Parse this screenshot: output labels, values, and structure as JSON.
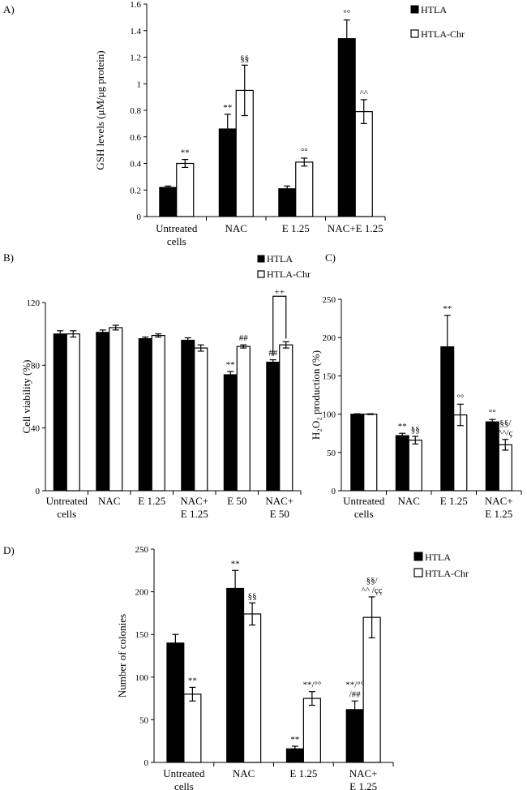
{
  "chart_data": [
    {
      "id": "A",
      "type": "bar",
      "panel_label": "A)",
      "ylabel": "GSH levels (μM/μg protein)",
      "ylim": [
        0,
        1.6
      ],
      "yticks": [
        "0",
        "0.2",
        "0.4",
        "0.6",
        "0.8",
        "1",
        "1.2",
        "1.4",
        "1.6"
      ],
      "categories": [
        [
          "Untreated",
          "cells"
        ],
        [
          "NAC"
        ],
        [
          "E 1.25"
        ],
        [
          "NAC+E 1.25"
        ]
      ],
      "legend": [
        "HTLA",
        "HTLA-Chr"
      ],
      "series": [
        {
          "name": "HTLA",
          "values": [
            0.22,
            0.66,
            0.21,
            1.34
          ],
          "errors": [
            0.01,
            0.11,
            0.02,
            0.14
          ],
          "annotations": [
            [],
            [
              "**"
            ],
            [],
            [
              "°°"
            ]
          ]
        },
        {
          "name": "HTLA-Chr",
          "values": [
            0.4,
            0.95,
            0.41,
            0.79
          ],
          "errors": [
            0.03,
            0.19,
            0.03,
            0.09
          ],
          "annotations": [
            [
              "**"
            ],
            [
              "§§"
            ],
            [
              "°°"
            ],
            [
              "^^"
            ]
          ]
        }
      ]
    },
    {
      "id": "B",
      "type": "bar",
      "panel_label": "B)",
      "ylabel": "Cell viability (%)",
      "ylim": [
        0,
        120
      ],
      "yticks": [
        "0",
        "40",
        "80",
        "120"
      ],
      "categories": [
        [
          "Untreated",
          "cells"
        ],
        [
          "NAC"
        ],
        [
          "E 1.25"
        ],
        [
          "NAC+",
          "E 1.25"
        ],
        [
          "E 50"
        ],
        [
          "NAC+",
          "E 50"
        ]
      ],
      "legend": [
        "HTLA",
        "HTLA-Chr"
      ],
      "bracket_label": "++",
      "series": [
        {
          "name": "HTLA",
          "values": [
            100,
            101,
            97,
            96,
            74,
            82
          ],
          "errors": [
            2,
            1.5,
            1,
            1.5,
            2,
            1.5
          ],
          "annotations": [
            [],
            [],
            [],
            [],
            [
              "**"
            ],
            [
              "##"
            ]
          ]
        },
        {
          "name": "HTLA-Chr",
          "values": [
            100,
            104,
            99,
            91,
            92,
            93
          ],
          "errors": [
            2,
            1.5,
            1,
            2,
            1,
            2
          ],
          "annotations": [
            [],
            [],
            [],
            [],
            [
              "##"
            ],
            []
          ]
        }
      ]
    },
    {
      "id": "C",
      "type": "bar",
      "panel_label": "C)",
      "ylabel": "H₂O₂ production (%)",
      "ylim": [
        0,
        250
      ],
      "yticks": [
        "0",
        "50",
        "100",
        "150",
        "200",
        "250"
      ],
      "categories": [
        [
          "Untreated",
          "cells"
        ],
        [
          "NAC"
        ],
        [
          "E 1.25"
        ],
        [
          "NAC+",
          "E 1.25"
        ]
      ],
      "series": [
        {
          "name": "HTLA",
          "values": [
            100,
            72,
            188,
            90
          ],
          "errors": [
            0.5,
            3,
            41,
            3
          ],
          "annotations": [
            [],
            [
              "**"
            ],
            [
              "**"
            ],
            [
              "°°"
            ]
          ]
        },
        {
          "name": "HTLA-Chr",
          "values": [
            100,
            66,
            99,
            60
          ],
          "errors": [
            0.5,
            5,
            14,
            7
          ],
          "annotations": [
            [],
            [
              "§§"
            ],
            [
              "°°"
            ],
            [
              "§§/",
              "^^/ç"
            ]
          ]
        }
      ]
    },
    {
      "id": "D",
      "type": "bar",
      "panel_label": "D)",
      "ylabel": "Number of colonies",
      "ylim": [
        0,
        250
      ],
      "yticks": [
        "0",
        "50",
        "100",
        "150",
        "200",
        "250"
      ],
      "categories": [
        [
          "Untreated",
          "cells"
        ],
        [
          "NAC"
        ],
        [
          "E 1.25"
        ],
        [
          "NAC+",
          "E 1.25"
        ]
      ],
      "legend": [
        "HTLA",
        "HTLA-Chr"
      ],
      "series": [
        {
          "name": "HTLA",
          "values": [
            140,
            204,
            16,
            62
          ],
          "errors": [
            10,
            21,
            3,
            10
          ],
          "annotations": [
            [],
            [
              "**"
            ],
            [
              "**"
            ],
            [
              "**/°°",
              "/##"
            ]
          ]
        },
        {
          "name": "HTLA-Chr",
          "values": [
            80,
            174,
            75,
            170
          ],
          "errors": [
            8,
            13,
            8,
            24
          ],
          "annotations": [
            [
              "**"
            ],
            [
              "§§"
            ],
            [
              "**/°°"
            ],
            [
              "§§/",
              "^^ /çç"
            ]
          ]
        }
      ]
    }
  ]
}
